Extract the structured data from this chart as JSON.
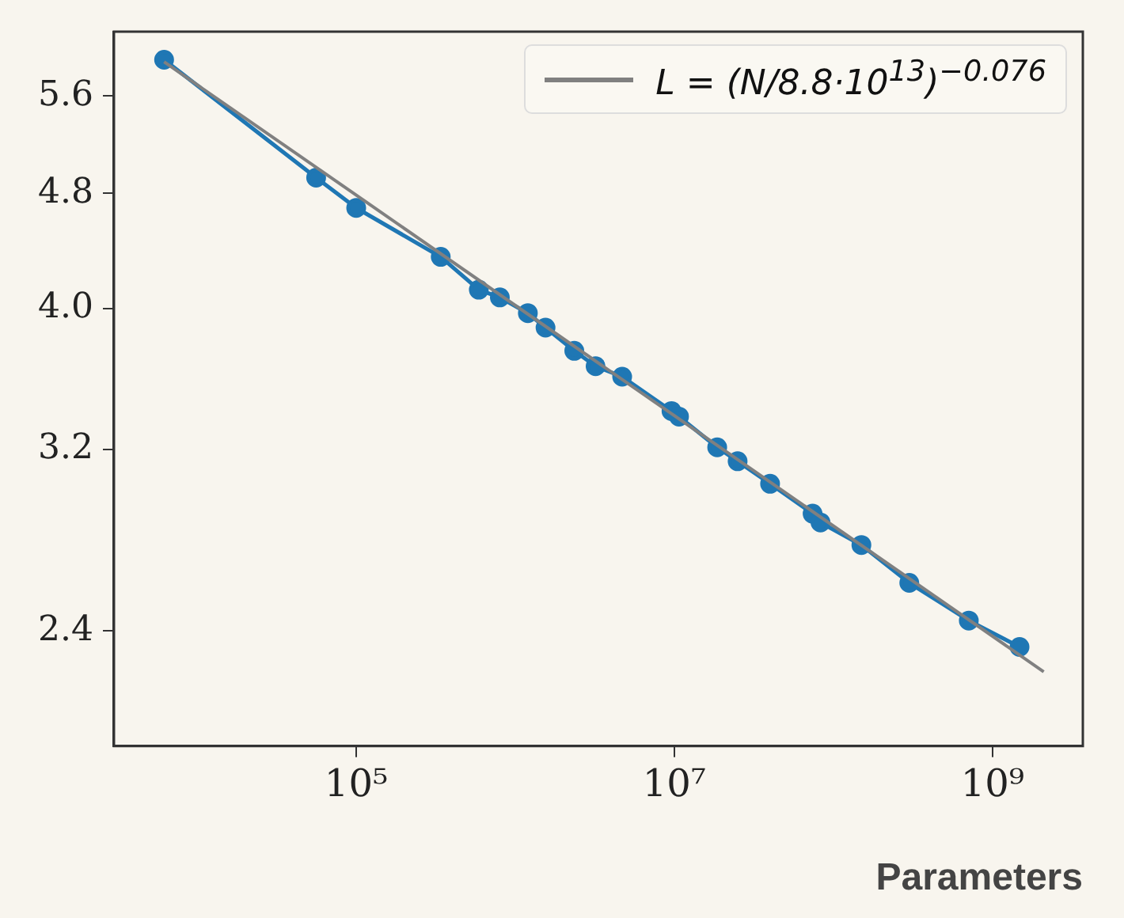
{
  "chart_data": {
    "type": "line",
    "xlabel": "Parameters",
    "log": "xy",
    "marker": "circle",
    "legend": "top right",
    "xlim": [
      3000,
      3700000000
    ],
    "xticks": [
      {
        "value": 100000,
        "label": "10⁵"
      },
      {
        "value": 10000000,
        "label": "10⁷"
      },
      {
        "value": 1000000000,
        "label": "10⁹"
      }
    ],
    "ylim": [
      2.0,
      6.2
    ],
    "yticks": [
      2.4,
      3.2,
      {
        "value": 4,
        "label": "4.0"
      },
      4.8,
      5.6
    ],
    "series": [
      {
        "color": "#1f77b4",
        "x": [
          6200,
          56000,
          100000,
          340000,
          590000,
          800000,
          1200000,
          1550000,
          2350000,
          3200000,
          4700000,
          9600000,
          10700000,
          18600000,
          25000000,
          40000000,
          74000000,
          83000000,
          150000000,
          300000000,
          710000000,
          1480000000
        ],
        "values": [
          5.93,
          4.92,
          4.69,
          4.34,
          4.12,
          4.07,
          3.97,
          3.88,
          3.74,
          3.65,
          3.59,
          3.4,
          3.37,
          3.21,
          3.14,
          3.03,
          2.89,
          2.85,
          2.75,
          2.59,
          2.44,
          2.34
        ]
      },
      {
        "name": "L = (N/8.8·10$^{13}$)$^{−0.076}$",
        "color": "#808080",
        "marker": "none",
        "x": [
          6200,
          2100000000
        ],
        "values": [
          5.91,
          2.25
        ]
      }
    ]
  }
}
